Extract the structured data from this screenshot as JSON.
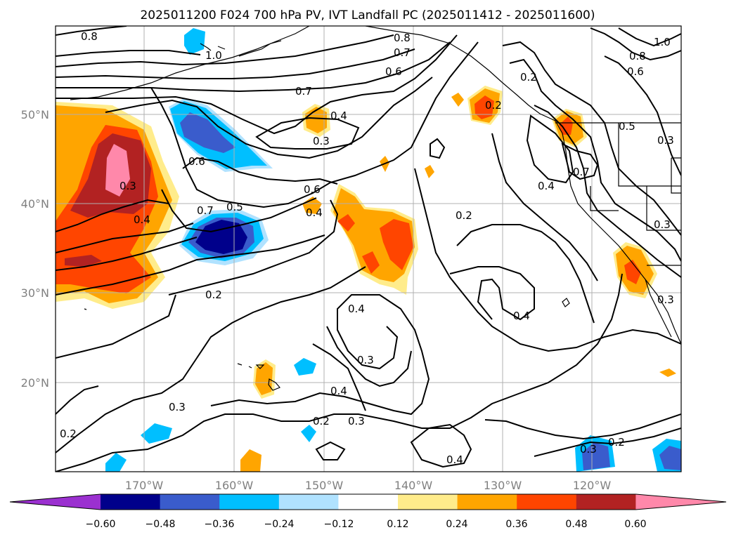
{
  "title": "2025011200 F024 700 hPa PV, IVT Landfall PC (2025011412 - 2025011600)",
  "lon_ticks": [
    "170°W",
    "160°W",
    "150°W",
    "140°W",
    "130°W",
    "120°W"
  ],
  "lat_ticks": [
    "50°N",
    "40°N",
    "30°N",
    "20°N"
  ],
  "colorbar": {
    "ticks": [
      "−0.60",
      "−0.48",
      "−0.36",
      "−0.24",
      "−0.12",
      "0.12",
      "0.24",
      "0.36",
      "0.48",
      "0.60"
    ],
    "colors": [
      "#9b30d0",
      "#00008b",
      "#3a5ccc",
      "#00bfff",
      "#b0e2ff",
      "#ffffff",
      "#ffec8b",
      "#ffa500",
      "#ff4500",
      "#b22222",
      "#ff88aa"
    ]
  },
  "contour_labels": [
    "0.8",
    "1.0",
    "0.8",
    "0.7",
    "0.6",
    "0.7",
    "0.4",
    "0.3",
    "0.6",
    "0.6",
    "0.7",
    "0.5",
    "0.4",
    "0.3",
    "0.4",
    "0.2",
    "0.2",
    "0.4",
    "0.3",
    "0.3",
    "0.4",
    "0.2",
    "0.3",
    "0.2",
    "0.4",
    "0.4",
    "0.2",
    "0.3",
    "0.2",
    "0.8",
    "0.6",
    "0.5",
    "0.3",
    "0.7",
    "0.4",
    "0.3",
    "0.3",
    "1.0",
    "0.2"
  ],
  "map": {
    "extent": {
      "lon": [
        -180,
        -110
      ],
      "lat": [
        10,
        60
      ]
    },
    "grid": true
  }
}
